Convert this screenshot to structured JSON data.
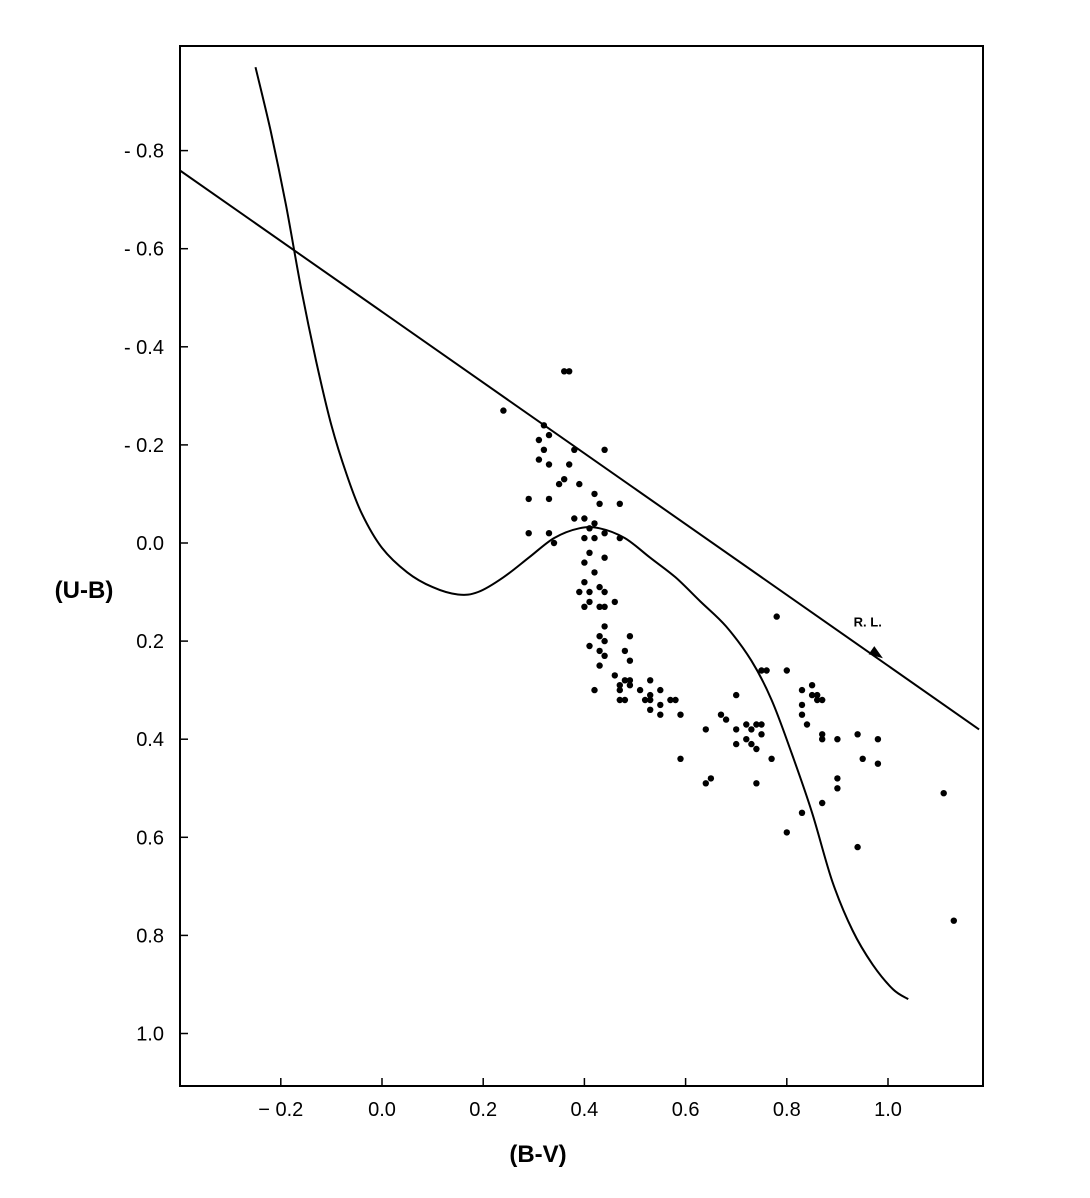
{
  "chart_data": {
    "type": "scatter",
    "xlabel": "(B-V)",
    "ylabel": "(U-B)",
    "xlim": [
      -0.4,
      1.18
    ],
    "ylim": [
      1.1,
      -0.98
    ],
    "y_inverted": true,
    "grid": false,
    "x_ticks": [
      {
        "value": -0.2,
        "label": "− 0.2"
      },
      {
        "value": 0.0,
        "label": "0.0"
      },
      {
        "value": 0.2,
        "label": "0.2"
      },
      {
        "value": 0.4,
        "label": "0.4"
      },
      {
        "value": 0.6,
        "label": "0.6"
      },
      {
        "value": 0.8,
        "label": "0.8"
      },
      {
        "value": 1.0,
        "label": "1.0"
      }
    ],
    "y_ticks": [
      {
        "value": -0.8,
        "label": "- 0.8"
      },
      {
        "value": -0.6,
        "label": "- 0.6"
      },
      {
        "value": -0.4,
        "label": "- 0.4"
      },
      {
        "value": -0.2,
        "label": "- 0.2"
      },
      {
        "value": 0.0,
        "label": "0.0"
      },
      {
        "value": 0.2,
        "label": "0.2"
      },
      {
        "value": 0.4,
        "label": "0.4"
      },
      {
        "value": 0.6,
        "label": "0.6"
      },
      {
        "value": 0.8,
        "label": "0.8"
      },
      {
        "value": 1.0,
        "label": "1.0"
      }
    ],
    "reddening_line": {
      "label": "R. L.",
      "points": [
        [
          -0.4,
          -0.76
        ],
        [
          1.18,
          0.38
        ]
      ],
      "arrow_at": [
        0.99,
        0.235
      ],
      "label_at": [
        0.96,
        0.17
      ]
    },
    "intrinsic_curve": [
      [
        -0.25,
        -0.97
      ],
      [
        -0.22,
        -0.84
      ],
      [
        -0.19,
        -0.69
      ],
      [
        -0.16,
        -0.52
      ],
      [
        -0.13,
        -0.37
      ],
      [
        -0.1,
        -0.24
      ],
      [
        -0.07,
        -0.14
      ],
      [
        -0.04,
        -0.06
      ],
      [
        0.0,
        0.01
      ],
      [
        0.05,
        0.06
      ],
      [
        0.1,
        0.09
      ],
      [
        0.15,
        0.105
      ],
      [
        0.19,
        0.1
      ],
      [
        0.24,
        0.07
      ],
      [
        0.29,
        0.03
      ],
      [
        0.34,
        -0.01
      ],
      [
        0.39,
        -0.03
      ],
      [
        0.43,
        -0.03
      ],
      [
        0.48,
        -0.01
      ],
      [
        0.53,
        0.03
      ],
      [
        0.58,
        0.07
      ],
      [
        0.63,
        0.12
      ],
      [
        0.68,
        0.17
      ],
      [
        0.73,
        0.24
      ],
      [
        0.77,
        0.32
      ],
      [
        0.81,
        0.43
      ],
      [
        0.85,
        0.55
      ],
      [
        0.89,
        0.69
      ],
      [
        0.93,
        0.79
      ],
      [
        0.97,
        0.86
      ],
      [
        1.01,
        0.91
      ],
      [
        1.04,
        0.93
      ]
    ],
    "points": [
      [
        0.36,
        -0.35
      ],
      [
        0.37,
        -0.35
      ],
      [
        0.24,
        -0.27
      ],
      [
        0.31,
        -0.21
      ],
      [
        0.32,
        -0.24
      ],
      [
        0.33,
        -0.22
      ],
      [
        0.32,
        -0.19
      ],
      [
        0.31,
        -0.17
      ],
      [
        0.33,
        -0.16
      ],
      [
        0.38,
        -0.19
      ],
      [
        0.37,
        -0.16
      ],
      [
        0.44,
        -0.19
      ],
      [
        0.36,
        -0.13
      ],
      [
        0.35,
        -0.12
      ],
      [
        0.39,
        -0.12
      ],
      [
        0.42,
        -0.1
      ],
      [
        0.29,
        -0.09
      ],
      [
        0.33,
        -0.09
      ],
      [
        0.43,
        -0.08
      ],
      [
        0.47,
        -0.08
      ],
      [
        0.38,
        -0.05
      ],
      [
        0.4,
        -0.05
      ],
      [
        0.42,
        -0.04
      ],
      [
        0.41,
        -0.03
      ],
      [
        0.29,
        -0.02
      ],
      [
        0.33,
        -0.02
      ],
      [
        0.4,
        -0.01
      ],
      [
        0.42,
        -0.01
      ],
      [
        0.44,
        -0.02
      ],
      [
        0.47,
        -0.01
      ],
      [
        0.34,
        0.0
      ],
      [
        0.41,
        0.02
      ],
      [
        0.44,
        0.03
      ],
      [
        0.4,
        0.04
      ],
      [
        0.42,
        0.06
      ],
      [
        0.4,
        0.08
      ],
      [
        0.43,
        0.09
      ],
      [
        0.39,
        0.1
      ],
      [
        0.41,
        0.1
      ],
      [
        0.44,
        0.1
      ],
      [
        0.41,
        0.12
      ],
      [
        0.44,
        0.13
      ],
      [
        0.46,
        0.12
      ],
      [
        0.43,
        0.13
      ],
      [
        0.4,
        0.13
      ],
      [
        0.78,
        0.15
      ],
      [
        0.44,
        0.17
      ],
      [
        0.43,
        0.19
      ],
      [
        0.44,
        0.2
      ],
      [
        0.49,
        0.19
      ],
      [
        0.41,
        0.21
      ],
      [
        0.43,
        0.22
      ],
      [
        0.48,
        0.22
      ],
      [
        0.44,
        0.23
      ],
      [
        0.49,
        0.24
      ],
      [
        0.43,
        0.25
      ],
      [
        0.75,
        0.26
      ],
      [
        0.76,
        0.26
      ],
      [
        0.8,
        0.26
      ],
      [
        0.46,
        0.27
      ],
      [
        0.48,
        0.28
      ],
      [
        0.53,
        0.28
      ],
      [
        0.49,
        0.28
      ],
      [
        0.47,
        0.29
      ],
      [
        0.49,
        0.29
      ],
      [
        0.51,
        0.3
      ],
      [
        0.55,
        0.3
      ],
      [
        0.85,
        0.29
      ],
      [
        0.83,
        0.3
      ],
      [
        0.42,
        0.3
      ],
      [
        0.47,
        0.3
      ],
      [
        0.85,
        0.31
      ],
      [
        0.86,
        0.31
      ],
      [
        0.53,
        0.31
      ],
      [
        0.57,
        0.32
      ],
      [
        0.47,
        0.32
      ],
      [
        0.48,
        0.32
      ],
      [
        0.52,
        0.32
      ],
      [
        0.53,
        0.32
      ],
      [
        0.58,
        0.32
      ],
      [
        0.7,
        0.31
      ],
      [
        0.83,
        0.33
      ],
      [
        0.87,
        0.32
      ],
      [
        0.86,
        0.32
      ],
      [
        0.55,
        0.33
      ],
      [
        0.53,
        0.34
      ],
      [
        0.59,
        0.35
      ],
      [
        0.67,
        0.35
      ],
      [
        0.83,
        0.35
      ],
      [
        0.55,
        0.35
      ],
      [
        0.68,
        0.36
      ],
      [
        0.72,
        0.37
      ],
      [
        0.74,
        0.37
      ],
      [
        0.75,
        0.37
      ],
      [
        0.84,
        0.37
      ],
      [
        0.64,
        0.38
      ],
      [
        0.7,
        0.38
      ],
      [
        0.73,
        0.38
      ],
      [
        0.94,
        0.39
      ],
      [
        0.75,
        0.39
      ],
      [
        0.87,
        0.39
      ],
      [
        0.72,
        0.4
      ],
      [
        0.87,
        0.4
      ],
      [
        0.9,
        0.4
      ],
      [
        0.98,
        0.4
      ],
      [
        0.7,
        0.41
      ],
      [
        0.73,
        0.41
      ],
      [
        0.74,
        0.42
      ],
      [
        0.59,
        0.44
      ],
      [
        0.77,
        0.44
      ],
      [
        0.95,
        0.44
      ],
      [
        0.98,
        0.45
      ],
      [
        0.65,
        0.48
      ],
      [
        0.64,
        0.49
      ],
      [
        0.74,
        0.49
      ],
      [
        0.9,
        0.48
      ],
      [
        0.9,
        0.5
      ],
      [
        1.11,
        0.51
      ],
      [
        0.87,
        0.53
      ],
      [
        0.83,
        0.55
      ],
      [
        0.8,
        0.59
      ],
      [
        0.94,
        0.62
      ],
      [
        1.13,
        0.77
      ]
    ]
  }
}
